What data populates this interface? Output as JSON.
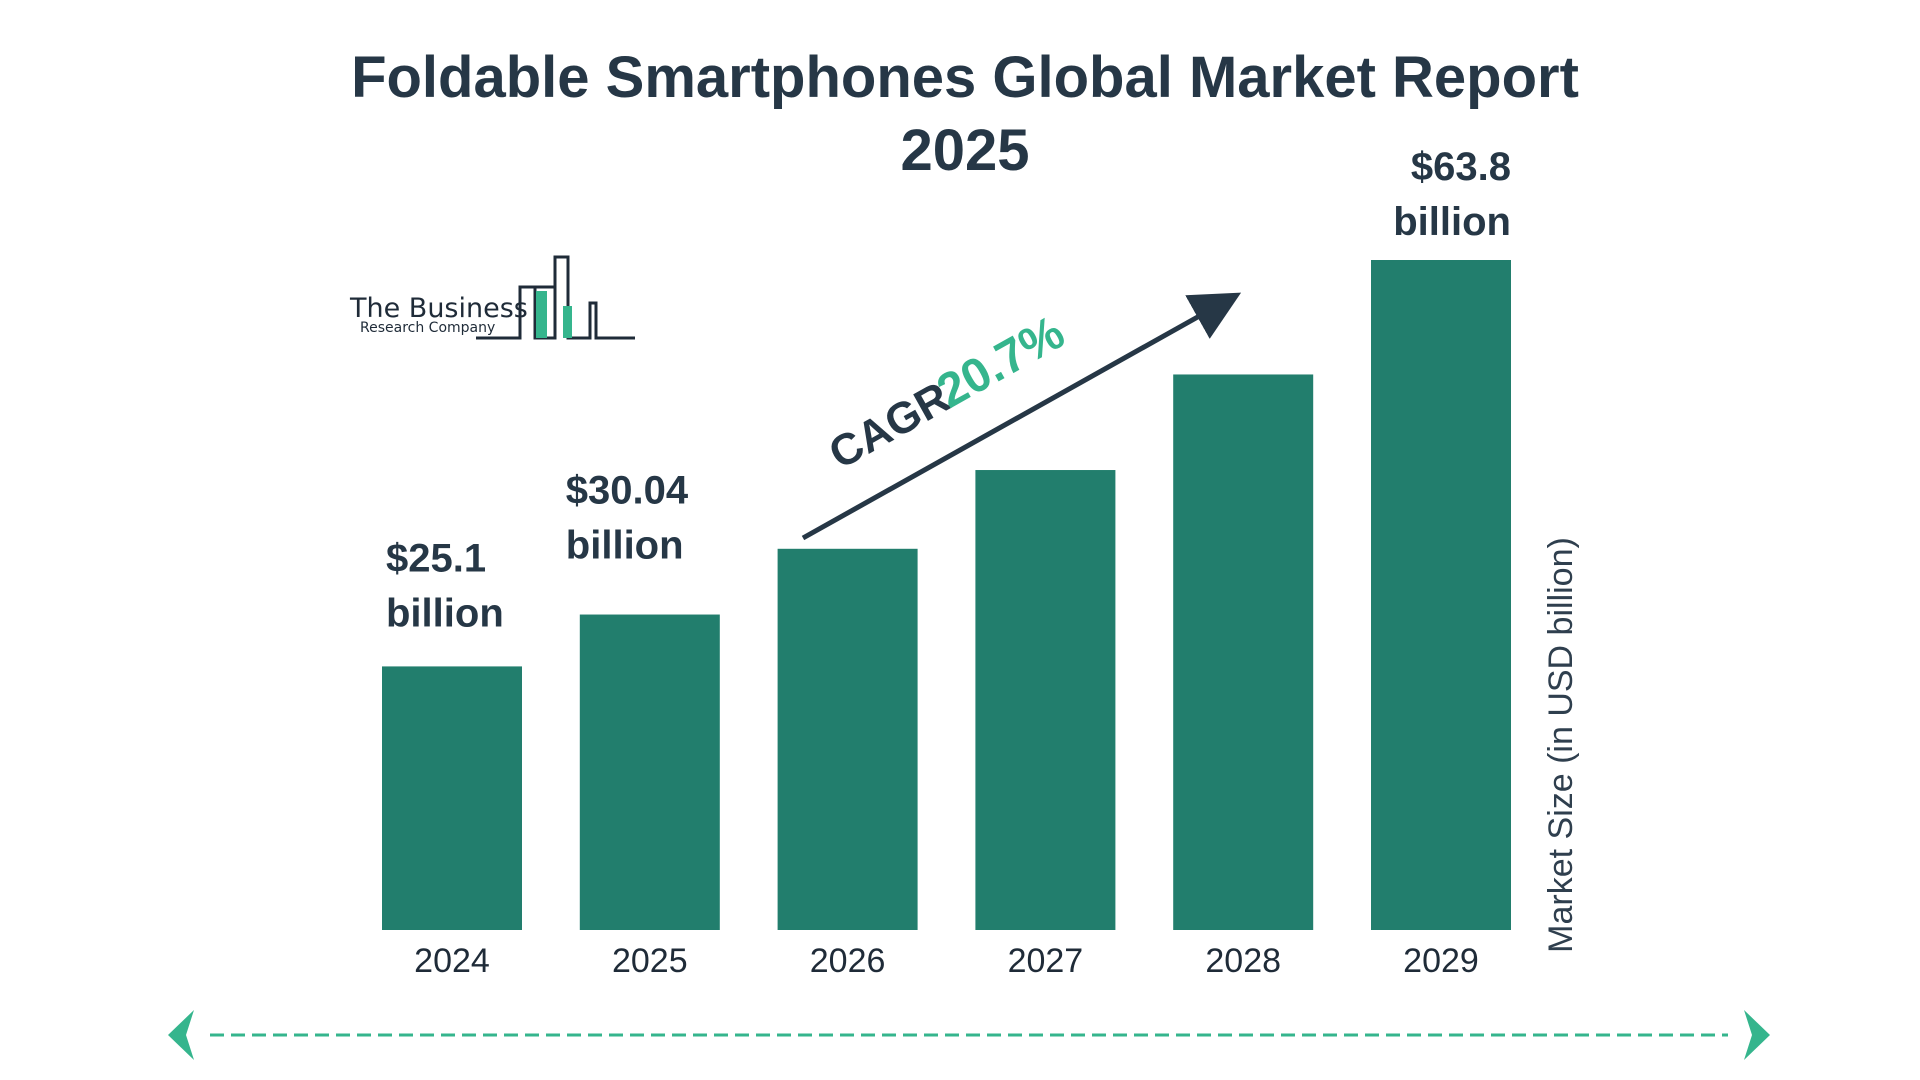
{
  "title_line1": "Foldable Smartphones Global Market Report",
  "title_line2": "2025",
  "logo": {
    "name_line1": "The Business",
    "name_line2": "Research Company"
  },
  "cagr": {
    "label": "CAGR",
    "value": "20.7%"
  },
  "colors": {
    "bar": "#227e6d",
    "title": "#263746",
    "accent": "#35b58d",
    "arrow": "#263746",
    "dashed": "#35b58d"
  },
  "chart_data": {
    "type": "bar",
    "title": "Foldable Smartphones Global Market Report 2025",
    "categories": [
      "2024",
      "2025",
      "2026",
      "2027",
      "2028",
      "2029"
    ],
    "values": [
      25.1,
      30.04,
      36.3,
      43.8,
      52.9,
      63.8
    ],
    "labels": [
      {
        "category": "2024",
        "line1": "$25.1",
        "line2": "billion"
      },
      {
        "category": "2025",
        "line1": "$30.04",
        "line2": "billion"
      },
      {
        "category": "2029",
        "line1": "$63.8",
        "line2": "billion"
      }
    ],
    "xlabel": "",
    "ylabel": "Market Size (in USD billion)",
    "ylim": [
      0,
      63.8
    ],
    "grid": false,
    "legend": "none"
  }
}
